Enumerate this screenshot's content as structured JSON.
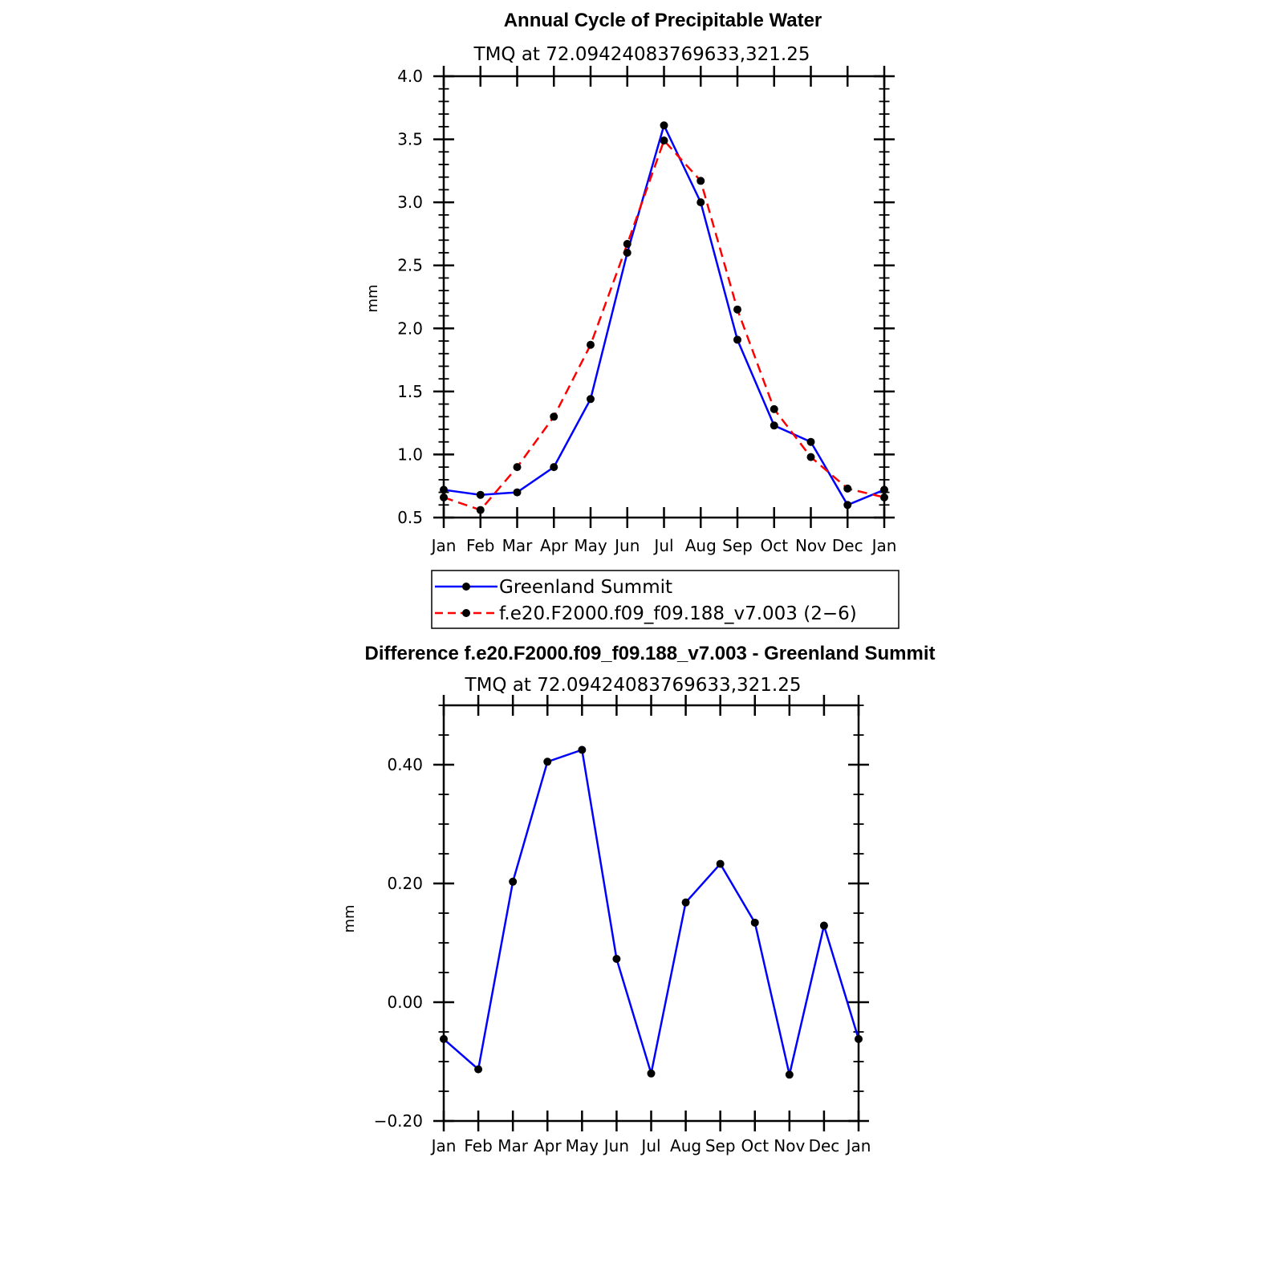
{
  "chart_data": [
    {
      "type": "line",
      "title": "Annual Cycle of Precipitable Water",
      "subtitle": "TMQ at 72.09424083769633,321.25",
      "xlabel": "",
      "ylabel": "mm",
      "categories": [
        "Jan",
        "Feb",
        "Mar",
        "Apr",
        "May",
        "Jun",
        "Jul",
        "Aug",
        "Sep",
        "Oct",
        "Nov",
        "Dec",
        "Jan"
      ],
      "ylim": [
        0.5,
        4.0
      ],
      "yticks": [
        0.5,
        1.0,
        1.5,
        2.0,
        2.5,
        3.0,
        3.5,
        4.0
      ],
      "ytick_labels": [
        "0.5",
        "1.0",
        "1.5",
        "2.0",
        "2.5",
        "3.0",
        "3.5",
        "4.0"
      ],
      "series": [
        {
          "name": "Greenland Summit",
          "color": "#0000ff",
          "dash": "solid",
          "values": [
            0.72,
            0.68,
            0.7,
            0.9,
            1.44,
            2.6,
            3.61,
            3.0,
            1.91,
            1.23,
            1.1,
            0.6,
            0.72
          ]
        },
        {
          "name": "f.e20.F2000.f09_f09.188_v7.003 (2−6)",
          "color": "#ff0000",
          "dash": "dashed",
          "values": [
            0.66,
            0.56,
            0.9,
            1.3,
            1.87,
            2.67,
            3.49,
            3.17,
            2.15,
            1.36,
            0.98,
            0.73,
            0.66
          ]
        }
      ],
      "legend_position": "below"
    },
    {
      "type": "line",
      "title": "Difference f.e20.F2000.f09_f09.188_v7.003 - Greenland Summit",
      "subtitle": "TMQ at 72.09424083769633,321.25",
      "xlabel": "",
      "ylabel": "mm",
      "categories": [
        "Jan",
        "Feb",
        "Mar",
        "Apr",
        "May",
        "Jun",
        "Jul",
        "Aug",
        "Sep",
        "Oct",
        "Nov",
        "Dec",
        "Jan"
      ],
      "ylim": [
        -0.2,
        0.5
      ],
      "yticks": [
        -0.2,
        0.0,
        0.2,
        0.4
      ],
      "ytick_labels": [
        "−0.20",
        "0.00",
        "0.20",
        "0.40"
      ],
      "series": [
        {
          "color": "#0000ff",
          "dash": "solid",
          "values": [
            -0.062,
            -0.113,
            0.203,
            0.405,
            0.425,
            0.073,
            -0.12,
            0.168,
            0.233,
            0.134,
            -0.122,
            0.129,
            -0.062
          ]
        }
      ]
    }
  ]
}
